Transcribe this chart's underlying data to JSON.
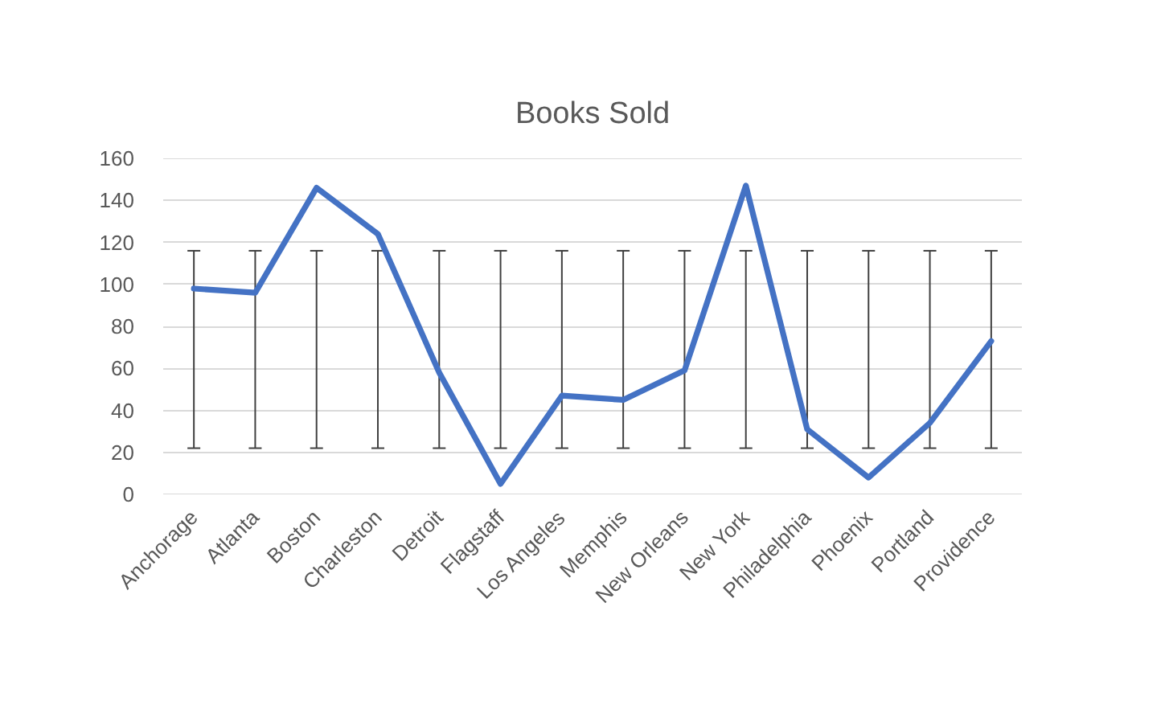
{
  "chart_data": {
    "type": "line",
    "title": "Books Sold",
    "categories": [
      "Anchorage",
      "Atlanta",
      "Boston",
      "Charleston",
      "Detroit",
      "Flagstaff",
      "Los Angeles",
      "Memphis",
      "New Orleans",
      "New York",
      "Philadelphia",
      "Phoenix",
      "Portland",
      "Providence"
    ],
    "values": [
      98,
      96,
      146,
      124,
      58,
      5,
      47,
      45,
      59,
      147,
      31,
      8,
      34,
      73
    ],
    "color": "#4472c4",
    "errors": [
      [
        22,
        116
      ],
      [
        22,
        116
      ],
      [
        22,
        116
      ],
      [
        22,
        116
      ],
      [
        22,
        116
      ],
      [
        22,
        116
      ],
      [
        22,
        116
      ],
      [
        22,
        116
      ],
      [
        22,
        116
      ],
      [
        22,
        116
      ],
      [
        22,
        116
      ],
      [
        22,
        116
      ],
      [
        22,
        116
      ],
      [
        22,
        116
      ]
    ],
    "ylim": [
      0,
      160
    ],
    "yticks": [
      0,
      20,
      40,
      60,
      80,
      100,
      120,
      140,
      160
    ],
    "grid": "y"
  }
}
